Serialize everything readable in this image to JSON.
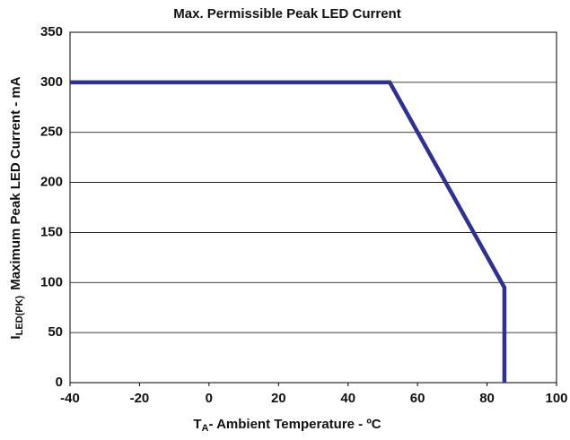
{
  "chart_data": {
    "type": "line",
    "title": "Max. Permissible Peak LED Current",
    "xlabel": [
      "T",
      "A",
      "- Ambient Temperature - ºC"
    ],
    "ylabel": [
      "I",
      "LED(PK)",
      "Maximum Peak LED Current - mA"
    ],
    "x": [
      -40,
      52,
      85,
      85
    ],
    "series": [
      {
        "color": "#2e3192",
        "values": [
          300,
          300,
          95,
          0
        ]
      }
    ],
    "xlim": [
      -40,
      100
    ],
    "xticks": [
      -40,
      -20,
      0,
      20,
      40,
      60,
      80,
      100
    ],
    "ylim": [
      0,
      350
    ],
    "yticks": [
      0,
      50,
      100,
      150,
      200,
      250,
      300,
      350
    ],
    "grid": true
  }
}
